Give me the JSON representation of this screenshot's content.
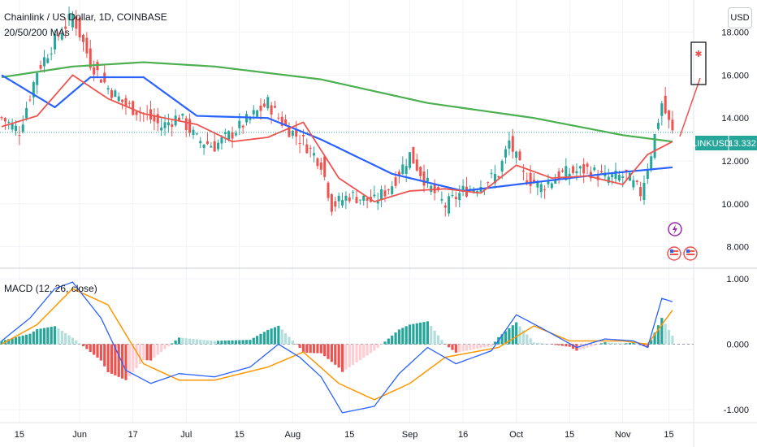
{
  "header": {
    "title": "Chainlink / US Dollar, 1D, COINBASE",
    "indicator": "20/50/200 MAs",
    "currency_button": "USD"
  },
  "macd_label": "MACD (12, 26, close)",
  "price_badge": {
    "symbol": "LINKUSD",
    "value": "13.332"
  },
  "colors": {
    "up": "#26a69a",
    "down": "#ef5350",
    "ma20": "#ef5350",
    "ma50": "#2962ff",
    "ma200": "#4caf50",
    "macd": "#2962ff",
    "signal": "#ff9800",
    "hist_up_strong": "#26a69a",
    "hist_up_weak": "#b2dfdb",
    "hist_down_strong": "#ef5350",
    "hist_down_weak": "#ffcdd2",
    "arrow": "#ef5350"
  },
  "icons": {
    "event_flash": "flash-icon",
    "event_flag": "us-flag-icon"
  },
  "chart_data": [
    {
      "type": "candlestick",
      "title": "Chainlink / US Dollar, 1D, COINBASE",
      "x_ticks": [
        "15",
        "Jun",
        "17",
        "Jul",
        "15",
        "Aug",
        "15",
        "Sep",
        "16",
        "Oct",
        "15",
        "Nov",
        "15"
      ],
      "y_ticks": [
        "18.000",
        "16.000",
        "14.000",
        "12.000",
        "10.000",
        "8.000"
      ],
      "ylim": [
        7.0,
        19.5
      ],
      "last_price": 13.332,
      "date_range": [
        "2024-05-09",
        "2024-11-15"
      ],
      "ma_anchor_points": {
        "ma20": [
          [
            0,
            13.6
          ],
          [
            10,
            14.1
          ],
          [
            20,
            16.0
          ],
          [
            30,
            14.9
          ],
          [
            40,
            14.2
          ],
          [
            55,
            13.7
          ],
          [
            65,
            12.9
          ],
          [
            75,
            13.1
          ],
          [
            85,
            13.8
          ],
          [
            95,
            11.2
          ],
          [
            105,
            10.1
          ],
          [
            115,
            10.6
          ],
          [
            125,
            10.7
          ],
          [
            135,
            10.5
          ],
          [
            145,
            11.8
          ],
          [
            155,
            11.2
          ],
          [
            165,
            11.3
          ],
          [
            175,
            10.9
          ],
          [
            182,
            12.3
          ],
          [
            189,
            12.9
          ]
        ],
        "ma50": [
          [
            0,
            16.0
          ],
          [
            15,
            14.5
          ],
          [
            25,
            15.9
          ],
          [
            40,
            15.9
          ],
          [
            55,
            14.1
          ],
          [
            75,
            14.0
          ],
          [
            90,
            13.0
          ],
          [
            110,
            11.4
          ],
          [
            130,
            10.6
          ],
          [
            150,
            11.0
          ],
          [
            170,
            11.4
          ],
          [
            189,
            11.7
          ]
        ],
        "ma200": [
          [
            0,
            15.9
          ],
          [
            20,
            16.4
          ],
          [
            40,
            16.6
          ],
          [
            60,
            16.4
          ],
          [
            90,
            15.8
          ],
          [
            120,
            14.7
          ],
          [
            150,
            14.0
          ],
          [
            175,
            13.2
          ],
          [
            189,
            12.9
          ]
        ]
      },
      "price_anchor_points": [
        [
          0,
          14.0
        ],
        [
          5,
          13.4
        ],
        [
          10,
          16.2
        ],
        [
          15,
          17.6
        ],
        [
          20,
          18.8
        ],
        [
          25,
          16.6
        ],
        [
          30,
          15.4
        ],
        [
          35,
          14.6
        ],
        [
          40,
          14.2
        ],
        [
          45,
          13.6
        ],
        [
          50,
          14.1
        ],
        [
          55,
          13.0
        ],
        [
          60,
          12.7
        ],
        [
          65,
          13.3
        ],
        [
          70,
          14.0
        ],
        [
          75,
          14.7
        ],
        [
          80,
          13.6
        ],
        [
          85,
          12.9
        ],
        [
          90,
          11.9
        ],
        [
          93,
          9.9
        ],
        [
          98,
          10.4
        ],
        [
          105,
          10.1
        ],
        [
          110,
          10.9
        ],
        [
          115,
          12.3
        ],
        [
          120,
          10.9
        ],
        [
          125,
          9.9
        ],
        [
          130,
          10.6
        ],
        [
          135,
          10.9
        ],
        [
          140,
          11.4
        ],
        [
          143,
          12.9
        ],
        [
          147,
          11.3
        ],
        [
          152,
          10.8
        ],
        [
          158,
          11.4
        ],
        [
          165,
          11.6
        ],
        [
          170,
          11.2
        ],
        [
          176,
          11.3
        ],
        [
          180,
          10.5
        ],
        [
          183,
          12.4
        ],
        [
          186,
          14.7
        ],
        [
          189,
          13.3
        ]
      ],
      "annotations": [
        {
          "type": "arrow-projection",
          "from_price": 13.3,
          "to_price": 17.8
        }
      ]
    },
    {
      "type": "line",
      "title": "MACD (12, 26, close)",
      "y_ticks": [
        "1.000",
        "0.000",
        "-1.000"
      ],
      "ylim": [
        -1.2,
        1.15
      ],
      "macd_anchor_points": [
        [
          0,
          0.05
        ],
        [
          8,
          0.4
        ],
        [
          15,
          0.85
        ],
        [
          20,
          0.95
        ],
        [
          28,
          0.4
        ],
        [
          35,
          -0.4
        ],
        [
          42,
          -0.6
        ],
        [
          50,
          -0.45
        ],
        [
          60,
          -0.5
        ],
        [
          70,
          -0.35
        ],
        [
          78,
          0.0
        ],
        [
          84,
          -0.2
        ],
        [
          90,
          -0.5
        ],
        [
          96,
          -1.05
        ],
        [
          105,
          -0.95
        ],
        [
          112,
          -0.45
        ],
        [
          120,
          -0.05
        ],
        [
          128,
          -0.3
        ],
        [
          138,
          -0.1
        ],
        [
          145,
          0.45
        ],
        [
          152,
          0.25
        ],
        [
          162,
          -0.05
        ],
        [
          170,
          0.08
        ],
        [
          178,
          0.05
        ],
        [
          182,
          -0.05
        ],
        [
          186,
          0.7
        ],
        [
          189,
          0.65
        ]
      ],
      "signal_anchor_points": [
        [
          0,
          0.0
        ],
        [
          10,
          0.3
        ],
        [
          20,
          0.85
        ],
        [
          30,
          0.6
        ],
        [
          40,
          -0.3
        ],
        [
          50,
          -0.55
        ],
        [
          60,
          -0.55
        ],
        [
          75,
          -0.35
        ],
        [
          85,
          -0.12
        ],
        [
          95,
          -0.6
        ],
        [
          105,
          -0.85
        ],
        [
          115,
          -0.6
        ],
        [
          125,
          -0.2
        ],
        [
          140,
          -0.05
        ],
        [
          150,
          0.28
        ],
        [
          160,
          0.05
        ],
        [
          175,
          0.05
        ],
        [
          182,
          0.0
        ],
        [
          189,
          0.52
        ]
      ],
      "series": [
        {
          "name": "MACD"
        },
        {
          "name": "Signal"
        },
        {
          "name": "Histogram"
        }
      ]
    }
  ]
}
